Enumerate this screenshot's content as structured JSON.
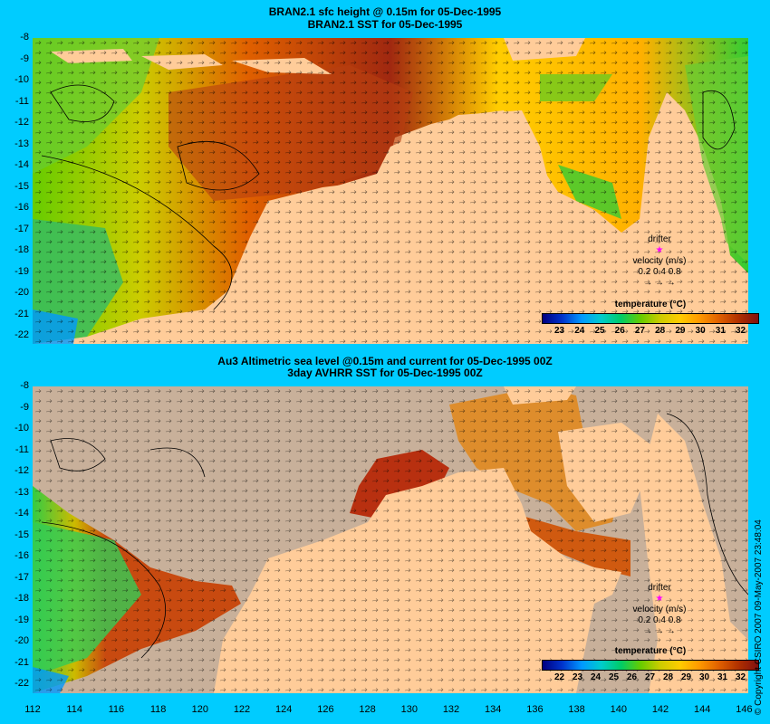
{
  "top_panel": {
    "title_line1": "BRAN2.1 sfc height @ 0.15m for 05-Dec-1995",
    "title_line2": "BRAN2.1 SST for 05-Dec-1995",
    "legend_title": "temperature (°C)",
    "legend_ticks": [
      "23",
      "24",
      "25",
      "26",
      "27",
      "28",
      "29",
      "30",
      "31",
      "32"
    ]
  },
  "bottom_panel": {
    "title_line1": "Au3 Altimetric sea level  @0.15m and current for 05-Dec-1995 00Z",
    "title_line2": "3day AVHRR SST for 05-Dec-1995 00Z",
    "legend_title": "temperature (°C)",
    "legend_ticks": [
      "22",
      "23",
      "24",
      "25",
      "26",
      "27",
      "28",
      "29",
      "30",
      "31",
      "32"
    ]
  },
  "drifter": {
    "label": "drifter",
    "velocity_label": "velocity (m/s)",
    "scale_values": "0.2 0.4 0.8",
    "marker_color": "#ff00ff"
  },
  "y_ticks": [
    "-8",
    "-9",
    "-10",
    "-11",
    "-12",
    "-13",
    "-14",
    "-15",
    "-16",
    "-17",
    "-18",
    "-19",
    "-20",
    "-21",
    "-22"
  ],
  "x_ticks": [
    "112",
    "114",
    "116",
    "118",
    "120",
    "122",
    "124",
    "126",
    "128",
    "130",
    "132",
    "134",
    "136",
    "138",
    "140",
    "142",
    "144",
    "146"
  ],
  "copyright": "© Copyright CSIRO 2007  09-May-2007 23:48:04",
  "colors": {
    "background": "#00ccff",
    "land": "#ffcc99",
    "cloud": "#c8b09a",
    "scale": [
      "#000080",
      "#0033cc",
      "#0099ff",
      "#00cccc",
      "#00cc66",
      "#66cc00",
      "#cccc00",
      "#ffcc00",
      "#ff9900",
      "#e06000",
      "#b03000",
      "#801010"
    ]
  }
}
